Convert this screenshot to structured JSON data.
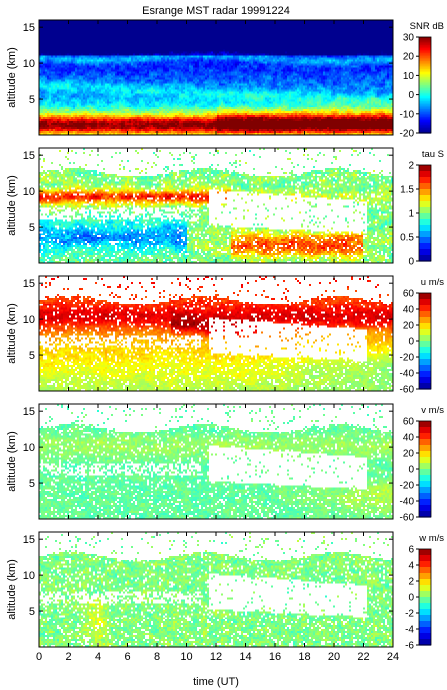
{
  "figure": {
    "title": "Esrange MST radar 19991224",
    "xlabel": "time (UT)",
    "xticks": [
      "0",
      "2",
      "4",
      "6",
      "8",
      "10",
      "12",
      "14",
      "16",
      "18",
      "20",
      "22",
      "24"
    ]
  },
  "colors": {
    "jet": [
      "#00008f",
      "#0000ff",
      "#0080ff",
      "#00ffff",
      "#80ff80",
      "#ffff00",
      "#ff8000",
      "#ff0000",
      "#800000"
    ],
    "missing": "#ffffff"
  },
  "chart_data": [
    {
      "type": "heatmap",
      "ylabel": "altitude (km)",
      "yticks": [
        "5",
        "10",
        "15"
      ],
      "ylim": [
        0,
        16
      ],
      "xlim": [
        0,
        24
      ],
      "colorbar_label": "SNR dB",
      "colorbar_ticks": [
        "30",
        "20",
        "10",
        "0",
        "-10",
        "-20"
      ],
      "zlim": [
        -20,
        30
      ]
    },
    {
      "type": "heatmap",
      "ylabel": "altitude (km)",
      "yticks": [
        "5",
        "10",
        "15"
      ],
      "ylim": [
        0,
        16
      ],
      "xlim": [
        0,
        24
      ],
      "colorbar_label": "tau S",
      "colorbar_ticks": [
        "2",
        "1.5",
        "1",
        "0.5",
        "0"
      ],
      "zlim": [
        0,
        2
      ]
    },
    {
      "type": "heatmap",
      "ylabel": "altitude (km)",
      "yticks": [
        "5",
        "10",
        "15"
      ],
      "ylim": [
        0,
        16
      ],
      "xlim": [
        0,
        24
      ],
      "colorbar_label": "u m/s",
      "colorbar_ticks": [
        "60",
        "40",
        "20",
        "0",
        "-20",
        "-40",
        "-60"
      ],
      "zlim": [
        -60,
        60
      ]
    },
    {
      "type": "heatmap",
      "ylabel": "altitude (km)",
      "yticks": [
        "5",
        "10",
        "15"
      ],
      "ylim": [
        0,
        16
      ],
      "xlim": [
        0,
        24
      ],
      "colorbar_label": "v m/s",
      "colorbar_ticks": [
        "60",
        "40",
        "20",
        "0",
        "-20",
        "-40",
        "-60"
      ],
      "zlim": [
        -60,
        60
      ]
    },
    {
      "type": "heatmap",
      "ylabel": "altitude (km)",
      "yticks": [
        "5",
        "10",
        "15"
      ],
      "ylim": [
        0,
        16
      ],
      "xlim": [
        0,
        24
      ],
      "colorbar_label": "w m/s",
      "colorbar_ticks": [
        "6",
        "4",
        "2",
        "0",
        "-2",
        "-4",
        "-6"
      ],
      "zlim": [
        -6,
        6
      ]
    }
  ]
}
